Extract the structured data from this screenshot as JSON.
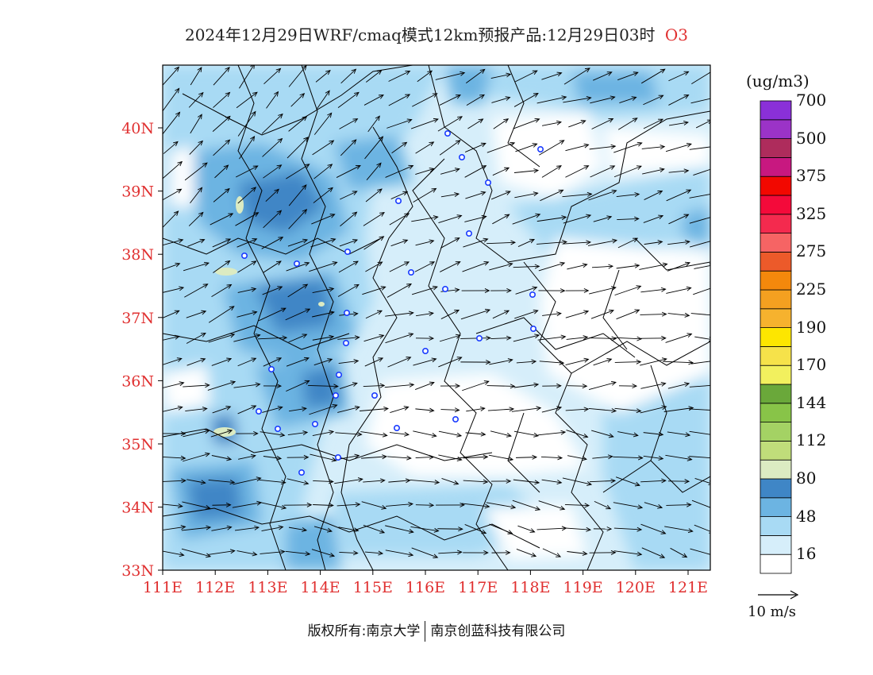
{
  "title": {
    "main": "2024年12月29日WRF/cmaq模式12km预报产品:12月29日03时",
    "pollutant": "O3"
  },
  "axes": {
    "lat_ticks": [
      "40N",
      "39N",
      "38N",
      "37N",
      "36N",
      "35N",
      "34N",
      "33N"
    ],
    "lon_ticks": [
      "111E",
      "112E",
      "113E",
      "114E",
      "115E",
      "116E",
      "117E",
      "118E",
      "119E",
      "120E",
      "121E"
    ],
    "tick_color": "#e03030"
  },
  "colorbar": {
    "units": "(ug/m3)",
    "colors": [
      "#ffffff",
      "#d6eefa",
      "#a8daf4",
      "#6cb4e2",
      "#3f86c6",
      "#dcebc2",
      "#c0dd7a",
      "#a4d264",
      "#88c448",
      "#6aa83a",
      "#f2f05e",
      "#f6e24a",
      "#fde600",
      "#f6b22e",
      "#f4a020",
      "#f4880c",
      "#ec5a2a",
      "#f66464",
      "#f42a4e",
      "#f40a3a",
      "#f20800",
      "#c81880",
      "#ae2c5c",
      "#9b33c7",
      "#8a30d8"
    ],
    "labels": [
      "16",
      "48",
      "80",
      "112",
      "144",
      "170",
      "190",
      "225",
      "275",
      "325",
      "375",
      "500",
      "700"
    ]
  },
  "wind_reference": {
    "label": "10 m/s"
  },
  "footer": {
    "left": "版权所有:南京大学",
    "right": "南京创蓝科技有限公司"
  }
}
